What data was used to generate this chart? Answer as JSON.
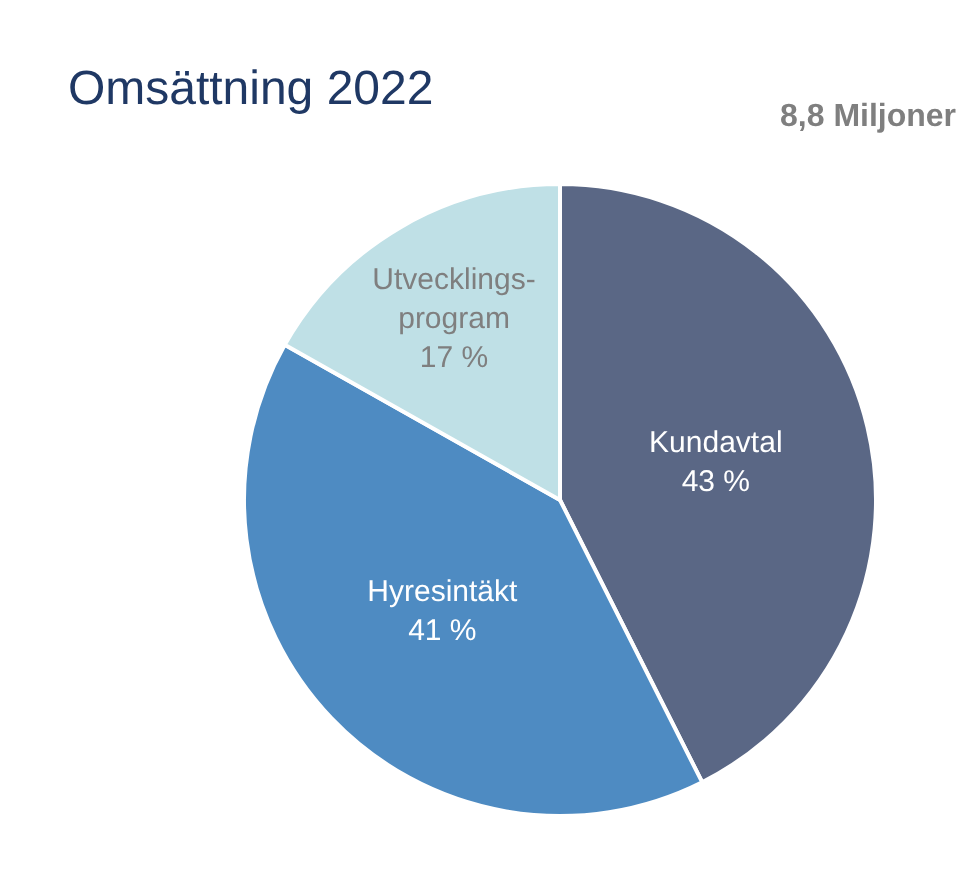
{
  "chart_data": {
    "type": "pie",
    "title": "Omsättning 2022",
    "annotations": [
      "8,8 Miljoner"
    ],
    "categories": [
      "Kundavtal",
      "Hyresintäkt",
      "Utvecklings-program"
    ],
    "values": [
      43,
      41,
      17
    ],
    "colors": [
      "#5a6785",
      "#4e8bc2",
      "#bfe0e6"
    ],
    "value_labels": [
      "43 %",
      "41 %",
      "17 %"
    ],
    "legend": false
  }
}
